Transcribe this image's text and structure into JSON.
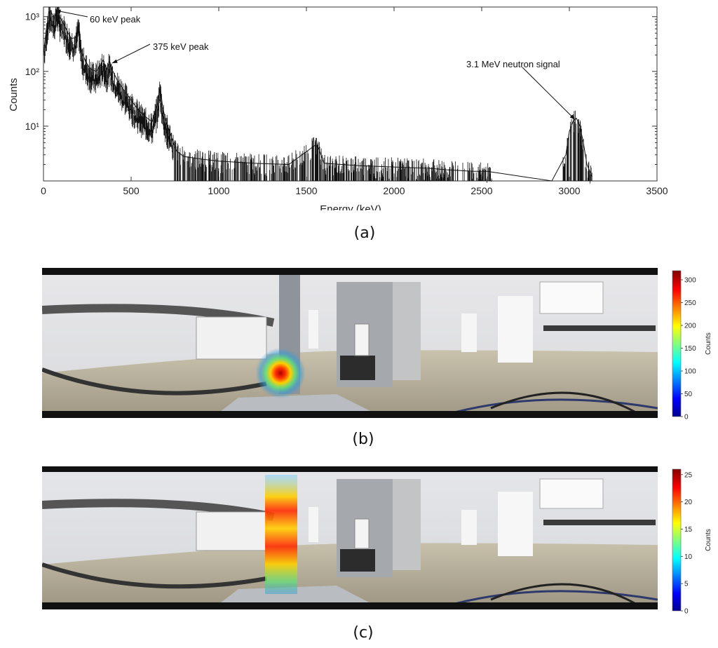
{
  "panels": [
    {
      "caption": "(a)"
    },
    {
      "caption": "(b)"
    },
    {
      "caption": "(c)"
    }
  ],
  "chart_data": [
    {
      "type": "line",
      "title": "",
      "xlabel": "Energy (keV)",
      "ylabel": "Counts",
      "xlim": [
        0,
        3500
      ],
      "ylim": [
        1,
        1500
      ],
      "yscale": "log",
      "xticks": [
        "0",
        "500",
        "1000",
        "1500",
        "2000",
        "2500",
        "3000",
        "3500"
      ],
      "yticks": [
        "10¹",
        "10²",
        "10³"
      ],
      "series": [
        {
          "x": [
            0,
            10,
            20,
            30,
            40,
            50,
            60,
            70,
            80,
            90,
            100,
            120,
            140,
            160,
            185,
            200,
            215,
            240,
            270,
            300,
            320,
            340,
            360,
            375,
            390,
            420,
            460,
            500,
            540,
            580,
            620,
            650,
            665,
            680,
            700,
            720,
            740,
            760,
            800,
            900,
            1000,
            1200,
            1400,
            1550,
            1570,
            1600,
            1800,
            2000,
            2200,
            2300,
            2450,
            2530,
            2900,
            2980,
            3000,
            3020,
            3040,
            3060,
            3080,
            3100,
            3130
          ],
          "values": [
            200,
            400,
            700,
            1200,
            1300,
            1100,
            900,
            1200,
            1500,
            1000,
            900,
            700,
            500,
            400,
            420,
            800,
            250,
            150,
            110,
            100,
            120,
            160,
            110,
            150,
            110,
            70,
            45,
            30,
            20,
            15,
            12,
            25,
            55,
            22,
            12,
            8,
            5,
            3.5,
            2.8,
            2.5,
            2.3,
            2.1,
            2.0,
            4.5,
            4.0,
            2.1,
            1.9,
            1.8,
            1.7,
            1.6,
            1.5,
            1.5,
            1.0,
            3,
            8,
            12,
            14,
            10,
            5,
            2,
            1.2
          ]
        }
      ],
      "annotations": [
        {
          "text": "60 keV peak",
          "x": 60,
          "y": 1300
        },
        {
          "text": "375 keV peak",
          "x": 375,
          "y": 150
        },
        {
          "text": "3.1 MeV neutron signal",
          "x": 3040,
          "y": 14
        }
      ]
    },
    {
      "type": "heatmap",
      "colorbar_label": "Counts",
      "colorbar_ticks": [
        "0",
        "50",
        "100",
        "150",
        "200",
        "250",
        "300"
      ],
      "range": [
        0,
        320
      ]
    },
    {
      "type": "heatmap",
      "colorbar_label": "Counts",
      "colorbar_ticks": [
        "0",
        "5",
        "10",
        "15",
        "20",
        "25"
      ],
      "range": [
        0,
        26
      ]
    }
  ]
}
